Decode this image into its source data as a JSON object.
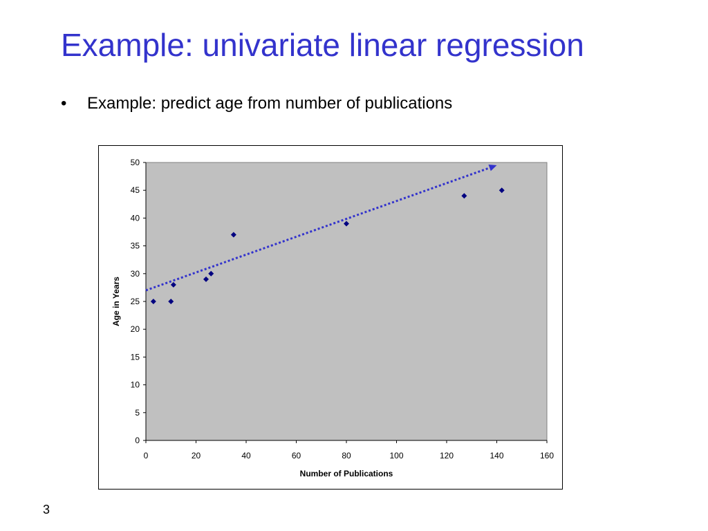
{
  "slide": {
    "title": "Example: univariate linear regression",
    "bullet_symbol": "•",
    "bullet_text": "Example: predict age from number of publications",
    "page_number": "3"
  },
  "colors": {
    "title": "#3333cc",
    "plot_area": "#c0c0c0",
    "marker": "#000080",
    "trendline": "#3333cc"
  },
  "chart_data": {
    "type": "scatter",
    "title": "",
    "xlabel": "Number of Publications",
    "ylabel": "Age in Years",
    "xlim": [
      0,
      160
    ],
    "ylim": [
      0,
      50
    ],
    "xticks": [
      0,
      20,
      40,
      60,
      80,
      100,
      120,
      140,
      160
    ],
    "yticks": [
      0,
      5,
      10,
      15,
      20,
      25,
      30,
      35,
      40,
      45,
      50
    ],
    "grid": false,
    "legend": "none",
    "series": [
      {
        "x": [
          3,
          10,
          11,
          24,
          26,
          35,
          80,
          127,
          142
        ],
        "y": [
          25,
          25,
          28,
          29,
          30,
          37,
          39,
          44,
          45
        ]
      }
    ],
    "trendline": {
      "style": "dotted-arrow",
      "from": [
        0,
        27
      ],
      "to": [
        140,
        49.5
      ]
    }
  }
}
